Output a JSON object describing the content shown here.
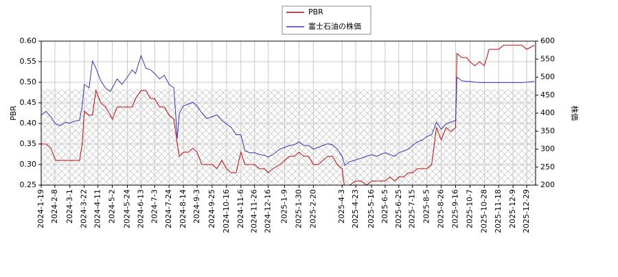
{
  "chart_data": {
    "type": "line",
    "x": [
      "2024-1-19",
      "2024-1-26",
      "2024-2-2",
      "2024-2-9",
      "2024-2-16",
      "2024-2-23",
      "2024-3-1",
      "2024-3-8",
      "2024-3-15",
      "2024-3-19",
      "2024-3-22",
      "2024-3-29",
      "2024-4-3",
      "2024-4-8",
      "2024-4-15",
      "2024-4-22",
      "2024-4-29",
      "2024-5-2",
      "2024-5-9",
      "2024-5-16",
      "2024-5-24",
      "2024-5-31",
      "2024-6-5",
      "2024-6-13",
      "2024-6-20",
      "2024-6-27",
      "2024-7-3",
      "2024-7-10",
      "2024-7-17",
      "2024-7-24",
      "2024-7-31",
      "2024-8-5",
      "2024-8-8",
      "2024-8-14",
      "2024-8-21",
      "2024-8-28",
      "2024-9-3",
      "2024-9-10",
      "2024-9-17",
      "2024-9-25",
      "2024-10-2",
      "2024-10-9",
      "2024-10-16",
      "2024-10-23",
      "2024-10-30",
      "2024-11-6",
      "2024-11-12",
      "2024-11-19",
      "2024-11-26",
      "2024-12-3",
      "2024-12-10",
      "2024-12-16",
      "2024-12-23",
      "2025-1-2",
      "2025-1-9",
      "2025-1-16",
      "2025-1-23",
      "2025-1-30",
      "2025-2-6",
      "2025-2-13",
      "2025-2-20",
      "2025-2-27",
      "2025-3-6",
      "2025-3-13",
      "2025-3-20",
      "2025-3-27",
      "2025-4-3",
      "2025-4-7",
      "2025-4-14",
      "2025-4-23",
      "2025-5-1",
      "2025-5-9",
      "2025-5-16",
      "2025-5-23",
      "2025-6-5",
      "2025-6-12",
      "2025-6-19",
      "2025-6-25",
      "2025-7-2",
      "2025-7-9",
      "2025-7-15",
      "2025-7-22",
      "2025-7-29",
      "2025-8-5",
      "2025-8-12",
      "2025-8-19",
      "2025-8-26",
      "2025-9-2",
      "2025-9-9",
      "2025-9-16",
      "2025-9-18",
      "2025-9-25",
      "2025-10-2",
      "2025-10-7",
      "2025-10-14",
      "2025-10-21",
      "2025-10-28",
      "2025-11-4",
      "2025-11-18",
      "2025-11-25",
      "2025-12-9",
      "2025-12-22",
      "2025-12-29",
      "2026-1-9"
    ],
    "series": [
      {
        "name": "PBR",
        "color": "#cc0000",
        "values": [
          0.35,
          0.35,
          0.34,
          0.31,
          0.31,
          0.31,
          0.31,
          0.31,
          0.31,
          0.35,
          0.43,
          0.42,
          0.42,
          0.48,
          0.45,
          0.44,
          0.42,
          0.41,
          0.44,
          0.44,
          0.44,
          0.44,
          0.46,
          0.48,
          0.48,
          0.46,
          0.46,
          0.44,
          0.44,
          0.42,
          0.41,
          0.35,
          0.32,
          0.33,
          0.33,
          0.34,
          0.33,
          0.3,
          0.3,
          0.3,
          0.29,
          0.31,
          0.29,
          0.28,
          0.28,
          0.33,
          0.3,
          0.3,
          0.3,
          0.29,
          0.29,
          0.28,
          0.29,
          0.3,
          0.31,
          0.32,
          0.32,
          0.33,
          0.32,
          0.32,
          0.3,
          0.3,
          0.31,
          0.32,
          0.32,
          0.3,
          0.29,
          0.24,
          0.25,
          0.26,
          0.26,
          0.25,
          0.26,
          0.26,
          0.26,
          0.27,
          0.26,
          0.27,
          0.27,
          0.28,
          0.28,
          0.29,
          0.29,
          0.29,
          0.3,
          0.39,
          0.36,
          0.39,
          0.38,
          0.39,
          0.57,
          0.56,
          0.56,
          0.55,
          0.54,
          0.55,
          0.54,
          0.58,
          0.58,
          0.59,
          0.59,
          0.59,
          0.58,
          0.59
        ]
      },
      {
        "name": "富士石油の株価",
        "color": "#3333cc",
        "axis": "y2",
        "values": [
          395,
          405,
          390,
          370,
          365,
          375,
          372,
          378,
          380,
          420,
          480,
          470,
          545,
          525,
          490,
          470,
          460,
          470,
          495,
          480,
          500,
          520,
          510,
          560,
          525,
          520,
          510,
          495,
          505,
          480,
          470,
          330,
          400,
          420,
          425,
          430,
          420,
          400,
          385,
          390,
          395,
          380,
          370,
          360,
          340,
          340,
          295,
          290,
          290,
          285,
          283,
          278,
          285,
          300,
          305,
          310,
          312,
          320,
          310,
          310,
          300,
          305,
          310,
          315,
          312,
          300,
          280,
          255,
          265,
          270,
          275,
          280,
          285,
          280,
          290,
          285,
          280,
          290,
          295,
          300,
          310,
          320,
          325,
          335,
          340,
          375,
          355,
          370,
          375,
          380,
          500,
          490,
          488,
          488,
          486,
          485,
          485,
          485,
          485,
          485,
          485,
          485,
          486,
          488
        ]
      }
    ],
    "xlim": [
      "2024-1-19",
      "2026-1-11"
    ],
    "xticks": [
      "2024-1-19",
      "2024-2-8",
      "2024-3-1",
      "2024-3-22",
      "2024-4-11",
      "2024-5-2",
      "2024-5-24",
      "2024-6-13",
      "2024-7-3",
      "2024-7-24",
      "2024-8-14",
      "2024-9-3",
      "2024-9-25",
      "2024-10-16",
      "2024-11-6",
      "2024-11-26",
      "2024-12-16",
      "2025-1-9",
      "2025-1-30",
      "2025-2-20",
      "2025-4-3",
      "2025-4-23",
      "2025-5-16",
      "2025-6-5",
      "2025-6-25",
      "2025-7-15",
      "2025-8-5",
      "2025-8-26",
      "2025-9-16",
      "2025-10-7",
      "2025-10-28",
      "2025-11-18",
      "2025-12-9",
      "2025-12-29"
    ],
    "ylim": [
      0.25,
      0.6
    ],
    "yticks": [
      0.25,
      {
        "value": 0.3,
        "label": "0.30"
      },
      0.35,
      {
        "value": 0.4,
        "label": "0.40"
      },
      0.45,
      {
        "value": 0.5,
        "label": "0.50"
      },
      0.55,
      {
        "value": 0.6,
        "label": "0.60"
      }
    ],
    "y2lim": [
      200,
      600
    ],
    "y2ticks": [
      200,
      250,
      300,
      350,
      400,
      450,
      500,
      550,
      600
    ],
    "ylabel": "PBR",
    "y2label": "株価",
    "grid": true
  }
}
